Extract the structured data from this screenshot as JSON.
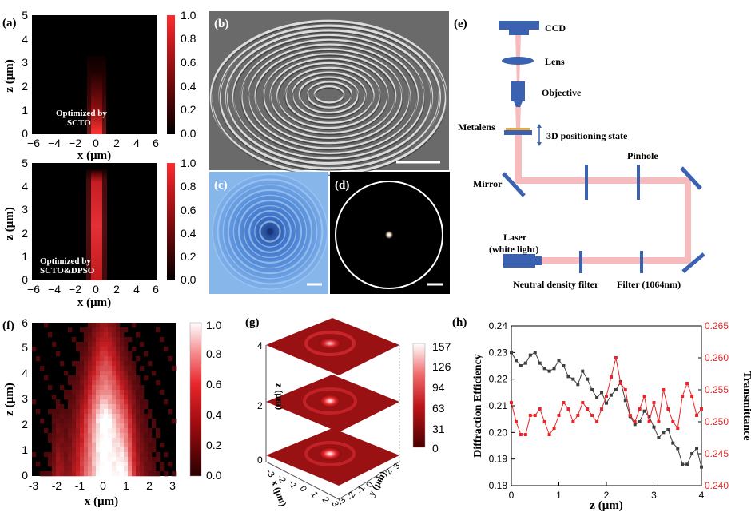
{
  "panels": {
    "a": {
      "label": "(a)",
      "top_note": [
        "Optimized by",
        "SCTO"
      ],
      "bottom_note": [
        "Optimized by",
        "SCTO&DPSO"
      ],
      "ylabel": "z (μm)",
      "xlabel": "x (μm)",
      "xticks": [
        "−6",
        "−4",
        "−2",
        "0",
        "2",
        "4",
        "6"
      ],
      "yticks": [
        "0",
        "1",
        "2",
        "3",
        "4",
        "5"
      ],
      "cbar_ticks": [
        "1.0",
        "0.8",
        "0.6",
        "0.4",
        "0.2",
        "0.0"
      ]
    },
    "b": {
      "label": "(b)"
    },
    "c": {
      "label": "(c)"
    },
    "d": {
      "label": "(d)"
    },
    "e": {
      "label": "(e)",
      "ccd": "CCD",
      "lens": "Lens",
      "objective": "Objective",
      "metalens": "Metalens",
      "stage": "3D positioning state",
      "pinhole": "Pinhole",
      "mirror": "Mirror",
      "laser": "Laser",
      "laser_sub": "(white light)",
      "nd_filter": "Neutral density filter",
      "filter": "Filter (1064nm)"
    },
    "f": {
      "label": "(f)",
      "ylabel": "z (μm)",
      "xlabel": "x (μm)",
      "xticks": [
        "-3",
        "-2",
        "-1",
        "0",
        "1",
        "2",
        "3"
      ],
      "yticks": [
        "0",
        "1",
        "2",
        "3",
        "4",
        "5",
        "6"
      ],
      "cbar_ticks": [
        "1.0",
        "0.8",
        "0.6",
        "0.4",
        "0.2",
        "0.0"
      ]
    },
    "g": {
      "label": "(g)",
      "zlabel": "z (μm)",
      "xlabel": "x (μm)",
      "ylabel": "y (μm)",
      "zticks": [
        "0",
        "2",
        "4"
      ],
      "xticks": [
        "-3",
        "-2",
        "-1",
        "0",
        "1",
        "2",
        "3"
      ],
      "yticks": [
        "-3",
        "-2",
        "-1",
        "0",
        "1",
        "2",
        "3"
      ],
      "cbar_ticks": [
        "157",
        "126",
        "94",
        "63",
        "31",
        "0"
      ]
    }
  },
  "chart_data": {
    "type": "line",
    "label": "(h)",
    "xlabel": "z (μm)",
    "ylabel_left": "Diffraction Efficiency",
    "ylabel_right": "Transmittance",
    "xlim": [
      0,
      4
    ],
    "ylim_left": [
      0.18,
      0.24
    ],
    "ylim_right": [
      0.24,
      0.265
    ],
    "xticks": [
      "0",
      "1",
      "2",
      "3",
      "4"
    ],
    "yticks_left": [
      "0.18",
      "0.19",
      "0.20",
      "0.21",
      "0.22",
      "0.23",
      "0.24"
    ],
    "yticks_right": [
      "0.240",
      "0.245",
      "0.250",
      "0.255",
      "0.260",
      "0.265"
    ],
    "colors": {
      "efficiency": "#404040",
      "transmittance": "#e8262b"
    },
    "series": [
      {
        "name": "Diffraction Efficiency",
        "axis": "left",
        "x": [
          0.0,
          0.1,
          0.2,
          0.3,
          0.4,
          0.5,
          0.6,
          0.7,
          0.8,
          0.9,
          1.0,
          1.1,
          1.2,
          1.3,
          1.4,
          1.5,
          1.6,
          1.7,
          1.8,
          1.9,
          2.0,
          2.1,
          2.2,
          2.3,
          2.4,
          2.5,
          2.6,
          2.7,
          2.8,
          2.9,
          3.0,
          3.1,
          3.2,
          3.3,
          3.4,
          3.5,
          3.6,
          3.7,
          3.8,
          3.9,
          4.0
        ],
        "values": [
          0.23,
          0.227,
          0.225,
          0.226,
          0.229,
          0.23,
          0.226,
          0.224,
          0.223,
          0.224,
          0.227,
          0.225,
          0.221,
          0.22,
          0.218,
          0.223,
          0.22,
          0.216,
          0.213,
          0.215,
          0.211,
          0.214,
          0.216,
          0.219,
          0.212,
          0.206,
          0.203,
          0.204,
          0.208,
          0.206,
          0.202,
          0.198,
          0.2,
          0.201,
          0.196,
          0.194,
          0.188,
          0.188,
          0.192,
          0.194,
          0.187
        ]
      },
      {
        "name": "Transmittance",
        "axis": "right",
        "x": [
          0.0,
          0.1,
          0.2,
          0.3,
          0.4,
          0.5,
          0.6,
          0.7,
          0.8,
          0.9,
          1.0,
          1.1,
          1.2,
          1.3,
          1.4,
          1.5,
          1.6,
          1.7,
          1.8,
          1.9,
          2.0,
          2.1,
          2.2,
          2.3,
          2.4,
          2.5,
          2.6,
          2.7,
          2.8,
          2.9,
          3.0,
          3.1,
          3.2,
          3.3,
          3.4,
          3.5,
          3.6,
          3.7,
          3.8,
          3.9,
          4.0
        ],
        "values": [
          0.253,
          0.25,
          0.248,
          0.248,
          0.251,
          0.251,
          0.252,
          0.25,
          0.248,
          0.249,
          0.251,
          0.253,
          0.252,
          0.25,
          0.251,
          0.253,
          0.252,
          0.251,
          0.25,
          0.252,
          0.254,
          0.257,
          0.26,
          0.256,
          0.255,
          0.251,
          0.25,
          0.252,
          0.254,
          0.25,
          0.253,
          0.25,
          0.255,
          0.252,
          0.25,
          0.249,
          0.254,
          0.256,
          0.254,
          0.251,
          0.252
        ]
      }
    ]
  }
}
